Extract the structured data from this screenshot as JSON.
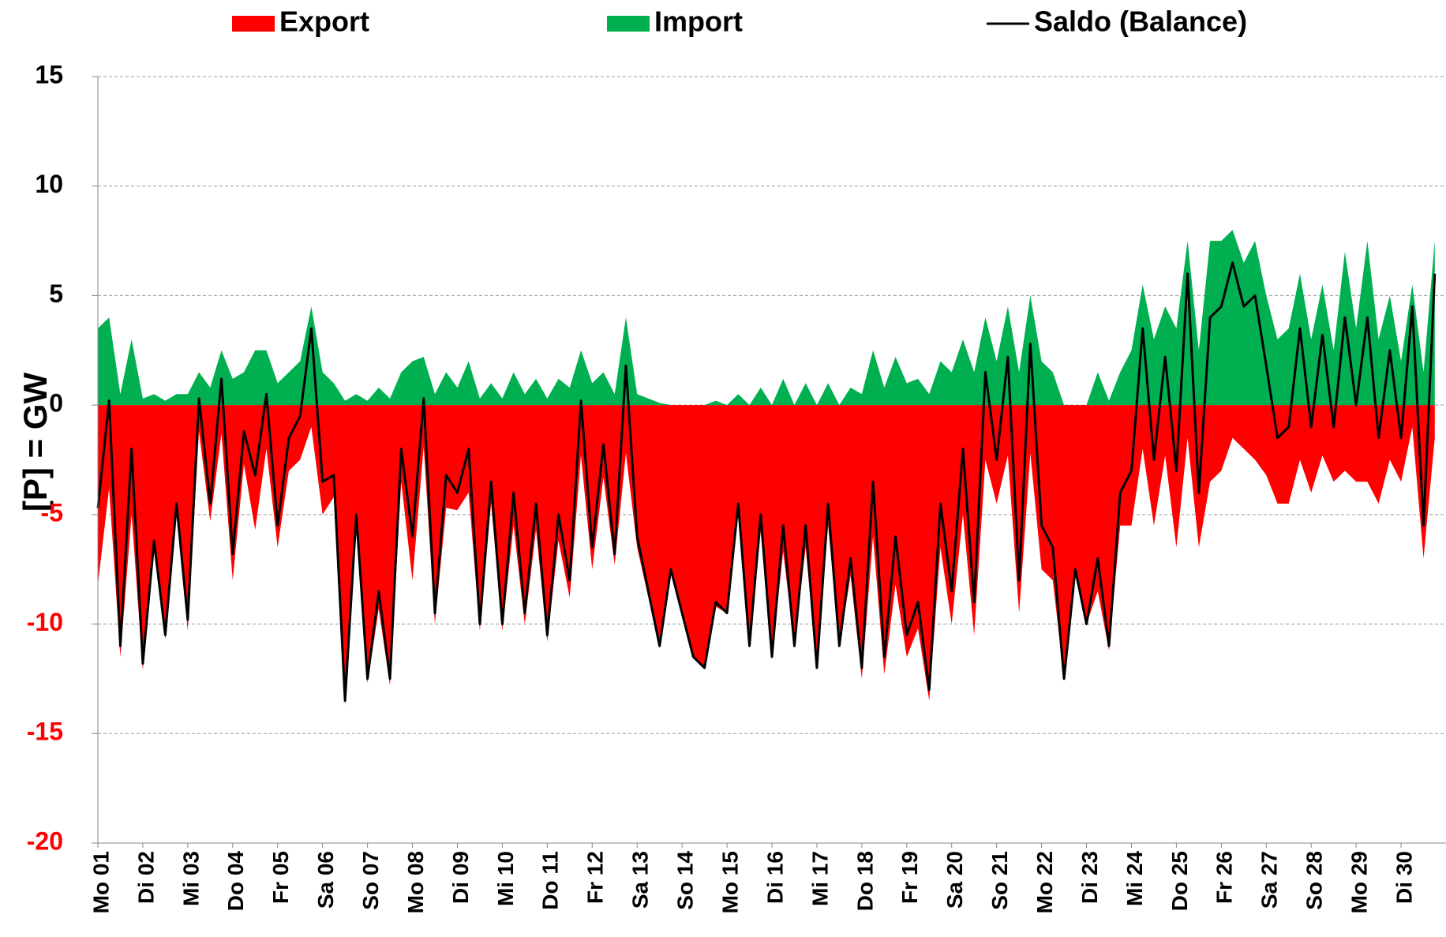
{
  "chart_data": {
    "type": "area_line",
    "y_label": "[P] = GW",
    "categories": [
      "Mo 01",
      null,
      null,
      null,
      "Di 02",
      null,
      null,
      null,
      "Mi 03",
      null,
      null,
      null,
      "Do 04",
      null,
      null,
      null,
      "Fr 05",
      null,
      null,
      null,
      "Sa 06",
      null,
      null,
      null,
      "So 07",
      null,
      null,
      null,
      "Mo 08",
      null,
      null,
      null,
      "Di 09",
      null,
      null,
      null,
      "Mi 10",
      null,
      null,
      null,
      "Do 11",
      null,
      null,
      null,
      "Fr 12",
      null,
      null,
      null,
      "Sa 13",
      null,
      null,
      null,
      "So 14",
      null,
      null,
      null,
      "Mo 15",
      null,
      null,
      null,
      "Di 16",
      null,
      null,
      null,
      "Mi 17",
      null,
      null,
      null,
      "Do 18",
      null,
      null,
      null,
      "Fr 19",
      null,
      null,
      null,
      "Sa 20",
      null,
      null,
      null,
      "So 21",
      null,
      null,
      null,
      "Mo 22",
      null,
      null,
      null,
      "Di 23",
      null,
      null,
      null,
      "Mi 24",
      null,
      null,
      null,
      "Do 25",
      null,
      null,
      null,
      "Fr 26",
      null,
      null,
      null,
      "Sa 27",
      null,
      null,
      null,
      "So 28",
      null,
      null,
      null,
      "Mo 29",
      null,
      null,
      null,
      "Di 30",
      null,
      null,
      null
    ],
    "series": [
      {
        "name": "Export",
        "kind": "area",
        "color": "#ff0000",
        "values": [
          -8.2,
          -3.8,
          -11.5,
          -5,
          -12.1,
          -6.7,
          -10.7,
          -5,
          -10.3,
          -1.2,
          -5.3,
          -1.3,
          -8,
          -2.7,
          -5.7,
          -2,
          -6.5,
          -3,
          -2.5,
          -1,
          -5,
          -4.2,
          -13.7,
          -5.5,
          -12.7,
          -9.3,
          -12.8,
          -3.5,
          -8,
          -1.9,
          -10,
          -4.7,
          -4.8,
          -4,
          -10.3,
          -4.5,
          -10.3,
          -5.5,
          -10,
          -5.7,
          -10.8,
          -6.2,
          -8.8,
          -2.3,
          -7.5,
          -3.3,
          -7.3,
          -2.2,
          -6.5,
          -8.8,
          -11.1,
          -7.5,
          -9.5,
          -11.5,
          -12,
          -9.2,
          -9.5,
          -5,
          -11,
          -5.8,
          -11.5,
          -6.7,
          -11,
          -6.5,
          -12,
          -5.5,
          -11,
          -7.8,
          -12.5,
          -6,
          -12.3,
          -8.2,
          -11.5,
          -10.2,
          -13.5,
          -6.5,
          -10,
          -5,
          -10.5,
          -2.5,
          -4.5,
          -2.3,
          -9.5,
          -2.2,
          -7.5,
          -8,
          -12.5,
          -7.5,
          -10,
          -8.5,
          -11.2,
          -5.5,
          -5.5,
          -2,
          -5.5,
          -2.3,
          -6.5,
          -1.5,
          -6.5,
          -3.5,
          -3,
          -1.5,
          -2,
          -2.5,
          -3.2,
          -4.5,
          -4.5,
          -2.5,
          -4,
          -2.3,
          -3.5,
          -3,
          -3.5,
          -3.5,
          -4.5,
          -2.5,
          -3.5,
          -1,
          -7,
          -1.5
        ]
      },
      {
        "name": "Import",
        "kind": "area",
        "color": "#00b050",
        "values": [
          3.5,
          4,
          0.5,
          3,
          0.3,
          0.5,
          0.2,
          0.5,
          0.5,
          1.5,
          0.8,
          2.5,
          1.2,
          1.5,
          2.5,
          2.5,
          1,
          1.5,
          2,
          4.5,
          1.5,
          1,
          0.2,
          0.5,
          0.2,
          0.8,
          0.3,
          1.5,
          2,
          2.2,
          0.5,
          1.5,
          0.8,
          2,
          0.3,
          1,
          0.3,
          1.5,
          0.5,
          1.2,
          0.3,
          1.2,
          0.8,
          2.5,
          1,
          1.5,
          0.5,
          4,
          0.5,
          0.3,
          0.1,
          0,
          0,
          0,
          0,
          0.2,
          0,
          0.5,
          0,
          0.8,
          0,
          1.2,
          0,
          1,
          0,
          1,
          0,
          0.8,
          0.5,
          2.5,
          0.8,
          2.2,
          1,
          1.2,
          0.5,
          2,
          1.5,
          3,
          1.5,
          4,
          2,
          4.5,
          1.5,
          5,
          2,
          1.5,
          0,
          0,
          0,
          1.5,
          0.2,
          1.5,
          2.5,
          5.5,
          3,
          4.5,
          3.5,
          7.5,
          2.5,
          7.5,
          7.5,
          8,
          6.5,
          7.5,
          5,
          3,
          3.5,
          6,
          3,
          5.5,
          2.5,
          7,
          3.5,
          7.5,
          3,
          5,
          2,
          5.5,
          1.5,
          7.5
        ]
      },
      {
        "name": "Saldo (Balance)",
        "kind": "line",
        "color": "#000000",
        "values": [
          -4.7,
          0.2,
          -11,
          -2,
          -11.8,
          -6.2,
          -10.5,
          -4.5,
          -9.8,
          0.3,
          -4.5,
          1.2,
          -6.8,
          -1.2,
          -3.2,
          0.5,
          -5.5,
          -1.5,
          -0.5,
          3.5,
          -3.5,
          -3.2,
          -13.5,
          -5,
          -12.5,
          -8.5,
          -12.5,
          -2,
          -6,
          0.3,
          -9.5,
          -3.2,
          -4,
          -2,
          -10,
          -3.5,
          -10,
          -4,
          -9.5,
          -4.5,
          -10.5,
          -5,
          -8,
          0.2,
          -6.5,
          -1.8,
          -6.8,
          1.8,
          -6,
          -8.5,
          -11,
          -7.5,
          -9.5,
          -11.5,
          -12,
          -9,
          -9.5,
          -4.5,
          -11,
          -5,
          -11.5,
          -5.5,
          -11,
          -5.5,
          -12,
          -4.5,
          -11,
          -7,
          -12,
          -3.5,
          -11.5,
          -6,
          -10.5,
          -9,
          -13,
          -4.5,
          -8.5,
          -2,
          -9,
          1.5,
          -2.5,
          2.2,
          -8,
          2.8,
          -5.5,
          -6.5,
          -12.5,
          -7.5,
          -10,
          -7,
          -11,
          -4,
          -3,
          3.5,
          -2.5,
          2.2,
          -3,
          6,
          -4,
          4,
          4.5,
          6.5,
          4.5,
          5,
          1.8,
          -1.5,
          -1,
          3.5,
          -1,
          3.2,
          -1,
          4,
          0,
          4,
          -1.5,
          2.5,
          -1.5,
          4.5,
          -5.5,
          6
        ]
      }
    ],
    "ylim": [
      -20,
      15
    ],
    "yticks": [
      -20,
      -15,
      -10,
      -5,
      0,
      5,
      10,
      15
    ],
    "negative_tick_color": "#ff0000",
    "grid": true,
    "legend": "top"
  }
}
